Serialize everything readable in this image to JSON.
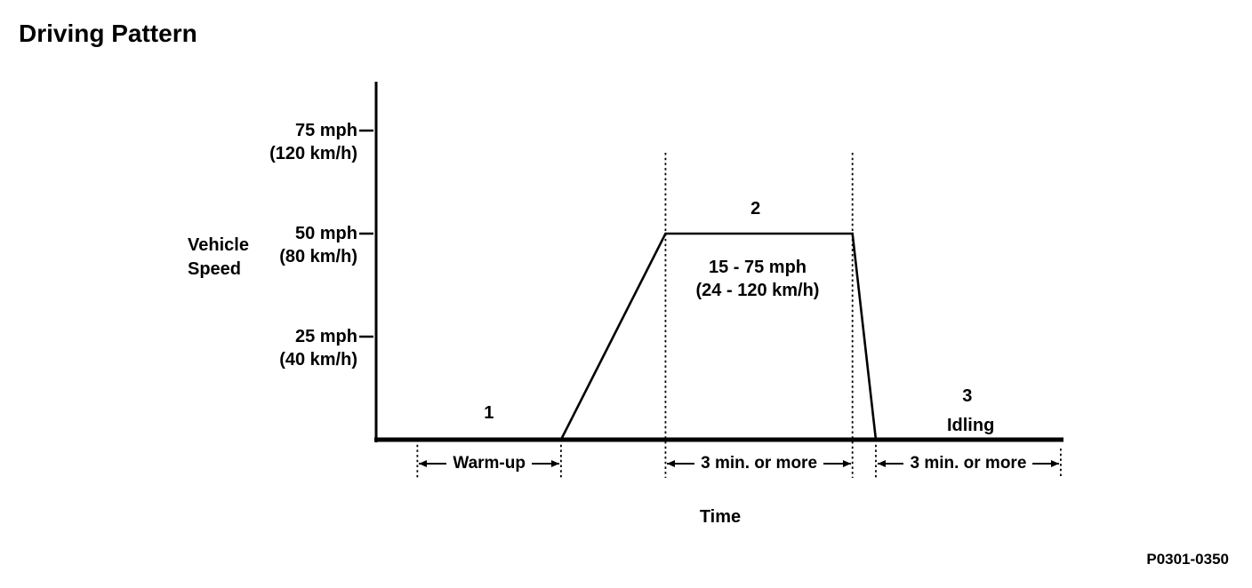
{
  "page": {
    "title": "Driving Pattern",
    "ref_code": "P0301-0350"
  },
  "colors": {
    "ink": "#000000",
    "background": "#ffffff"
  },
  "chart_data": {
    "type": "line",
    "title": "Driving Pattern",
    "xlabel": "Time",
    "ylabel": "Vehicle Speed",
    "ylabel_lines": [
      "Vehicle",
      "Speed"
    ],
    "y_unit": "mph",
    "ylim": [
      0,
      87
    ],
    "x_unit": "relative position along timeline (%); no numeric time scale shown",
    "grid": false,
    "legend": false,
    "y_ticks": [
      {
        "value": 75,
        "label": "75 mph",
        "sublabel": "(120 km/h)"
      },
      {
        "value": 50,
        "label": "50 mph",
        "sublabel": "(80 km/h)"
      },
      {
        "value": 25,
        "label": "25 mph",
        "sublabel": "(40 km/h)"
      }
    ],
    "series": [
      {
        "name": "vehicle-speed-profile",
        "points": [
          {
            "x": 6.0,
            "mph": 0
          },
          {
            "x": 26.9,
            "mph": 0
          },
          {
            "x": 42.1,
            "mph": 50
          },
          {
            "x": 69.3,
            "mph": 50
          },
          {
            "x": 72.7,
            "mph": 0
          },
          {
            "x": 99.6,
            "mph": 0
          }
        ]
      }
    ],
    "guides": [
      {
        "x": 6.0,
        "kind": "short"
      },
      {
        "x": 26.9,
        "kind": "short"
      },
      {
        "x": 42.1,
        "kind": "tall"
      },
      {
        "x": 69.3,
        "kind": "tall"
      },
      {
        "x": 72.7,
        "kind": "short"
      },
      {
        "x": 99.6,
        "kind": "stub"
      }
    ],
    "intervals": [
      {
        "label": "Warm-up",
        "from": 6.0,
        "to": 26.9
      },
      {
        "label": "3 min. or more",
        "from": 42.1,
        "to": 69.3
      },
      {
        "label": "3 min. or more",
        "from": 72.7,
        "to": 99.6
      }
    ],
    "annotations": [
      {
        "id": "phase-1",
        "lines": [
          "1"
        ],
        "x": 16.4,
        "mph": 6.5
      },
      {
        "id": "phase-2",
        "lines": [
          "2"
        ],
        "x": 55.2,
        "mph": 56
      },
      {
        "id": "cruise-range",
        "lines": [
          "15 - 75 mph",
          "(24 - 120 km/h)"
        ],
        "x": 55.5,
        "mph": 39
      },
      {
        "id": "phase-3",
        "lines": [
          "3"
        ],
        "x": 86.0,
        "mph": 10.5
      },
      {
        "id": "idling",
        "lines": [
          "Idling"
        ],
        "x": 86.5,
        "mph": 3.5
      }
    ]
  }
}
